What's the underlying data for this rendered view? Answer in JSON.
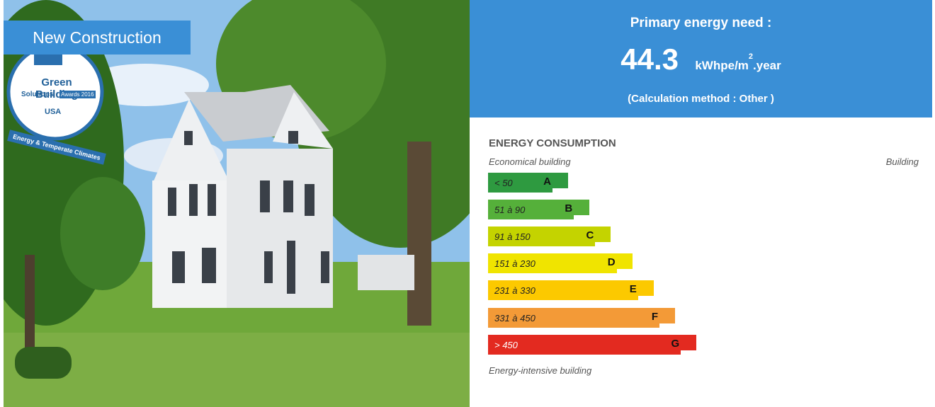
{
  "photo": {
    "label": "New Construction",
    "badge": {
      "line1": "Green Building",
      "line2": "Solutions",
      "line3": "Awards 2016",
      "line4": "USA",
      "ribbon": "Energy & Temperate Climates"
    }
  },
  "summary": {
    "title": "Primary energy need :",
    "value": 44.3,
    "unit": "kWhpe/m",
    "unit_sup": "2",
    "unit_suffix": ".year",
    "method": "(Calculation method : Other )"
  },
  "scale": {
    "title": "ENERGY CONSUMPTION",
    "top_left": "Economical building",
    "top_right": "Building",
    "bottom": "Energy-intensive building",
    "classes": [
      {
        "range": "< 50",
        "letter": "A",
        "color": "#2e9a40"
      },
      {
        "range": "51 à 90",
        "letter": "B",
        "color": "#55b03a"
      },
      {
        "range": "91 à 150",
        "letter": "C",
        "color": "#c4d300"
      },
      {
        "range": "151 à 230",
        "letter": "D",
        "color": "#f0e400"
      },
      {
        "range": "231 à 330",
        "letter": "E",
        "color": "#fcc900"
      },
      {
        "range": "331 à 450",
        "letter": "F",
        "color": "#f39a37"
      },
      {
        "range": "> 450",
        "letter": "G",
        "color": "#e32a20"
      }
    ]
  }
}
